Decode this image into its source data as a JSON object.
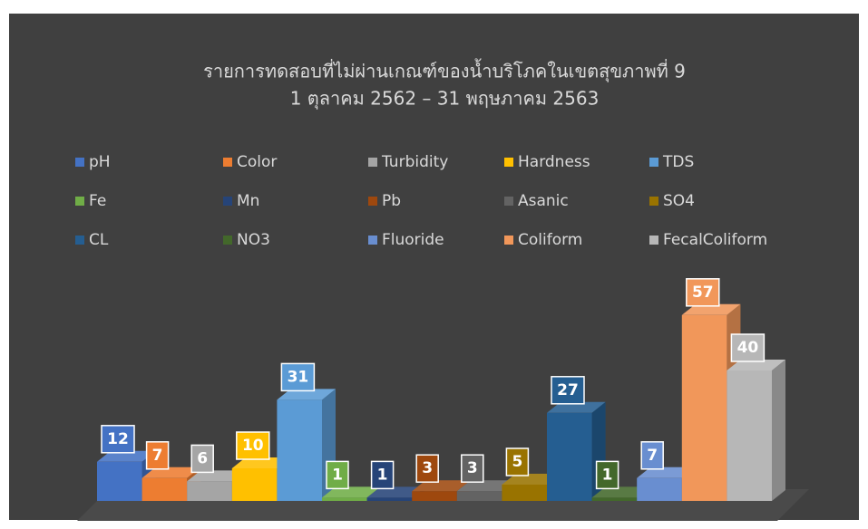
{
  "chart_data": {
    "type": "bar3d",
    "title": "รายการทดสอบที่ไม่ผ่านเกณฑ์ของน้ำบริโภคในเขตสุขภาพที่ 9",
    "subtitle": "1 ตุลาคม 2562 – 31 พฤษภาคม 2563",
    "legend": "top",
    "series": [
      {
        "name": "pH",
        "color": "#4472c4",
        "values": [
          12
        ]
      },
      {
        "name": "Color",
        "color": "#ed7d31",
        "values": [
          7
        ]
      },
      {
        "name": "Turbidity",
        "color": "#a5a5a5",
        "values": [
          6
        ]
      },
      {
        "name": "Hardness",
        "color": "#ffc000",
        "values": [
          10
        ]
      },
      {
        "name": "TDS",
        "color": "#5b9bd5",
        "values": [
          31
        ]
      },
      {
        "name": "Fe",
        "color": "#70ad47",
        "values": [
          1
        ]
      },
      {
        "name": "Mn",
        "color": "#264478",
        "values": [
          1
        ]
      },
      {
        "name": "Pb",
        "color": "#9e480e",
        "values": [
          3
        ]
      },
      {
        "name": "Asanic",
        "color": "#636363",
        "values": [
          3
        ]
      },
      {
        "name": "SO4",
        "color": "#997300",
        "values": [
          5
        ]
      },
      {
        "name": "CL",
        "color": "#255e91",
        "values": [
          27
        ]
      },
      {
        "name": "NO3",
        "color": "#43682b",
        "values": [
          1
        ]
      },
      {
        "name": "Fluoride",
        "color": "#698ed0",
        "values": [
          7
        ]
      },
      {
        "name": "Coliform",
        "color": "#f1975a",
        "values": [
          57
        ]
      },
      {
        "name": "FecalColiform",
        "color": "#b7b7b7",
        "values": [
          40
        ]
      }
    ]
  }
}
